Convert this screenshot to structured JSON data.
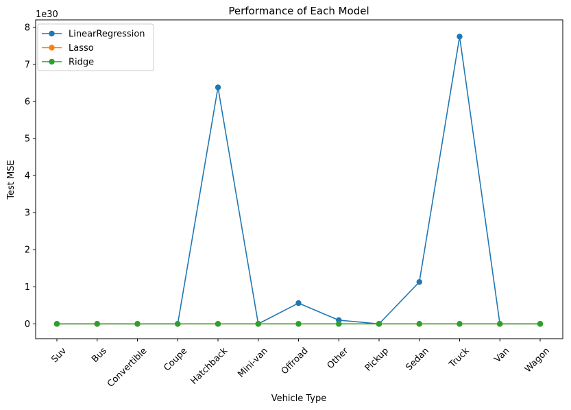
{
  "chart_data": {
    "type": "line",
    "title": "Performance of Each Model",
    "xlabel": "Vehicle Type",
    "ylabel": "Test MSE",
    "y_offset_label": "1e30",
    "y_scale_exponent": 30,
    "categories": [
      "Suv",
      "Bus",
      "Convertible",
      "Coupe",
      "Hatchback",
      "Mini-van",
      "Offroad",
      "Other",
      "Pickup",
      "Sedan",
      "Truck",
      "Van",
      "Wagon"
    ],
    "yticks": [
      "0",
      "1",
      "2",
      "3",
      "4",
      "5",
      "6",
      "7",
      "8"
    ],
    "ylim": [
      -0.4,
      8.2
    ],
    "grid": false,
    "legend_position": "top-left",
    "series": [
      {
        "name": "LinearRegression",
        "color": "#1f77b4",
        "values": [
          0,
          0,
          0,
          0,
          6.38,
          0,
          0.56,
          0.1,
          0,
          1.13,
          7.75,
          0,
          0
        ]
      },
      {
        "name": "Lasso",
        "color": "#ff7f0e",
        "values": [
          0,
          0,
          0,
          0,
          0,
          0,
          0,
          0,
          0,
          0,
          0,
          0,
          0
        ]
      },
      {
        "name": "Ridge",
        "color": "#2ca02c",
        "values": [
          0,
          0,
          0,
          0,
          0,
          0,
          0,
          0,
          0,
          0,
          0,
          0,
          0
        ]
      }
    ]
  }
}
